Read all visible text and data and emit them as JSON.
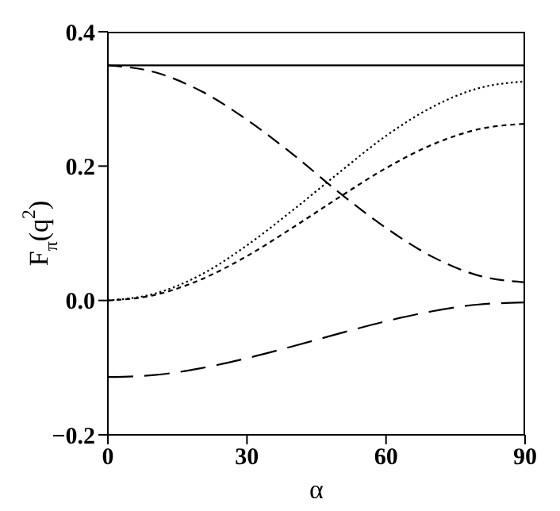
{
  "chart_data": {
    "type": "line",
    "xlabel": "α",
    "ylabel": "F$_{π}$(q$^{2}$)",
    "x": [
      0,
      10,
      20,
      30,
      40,
      50,
      60,
      70,
      80,
      90
    ],
    "series": [
      {
        "color": "#000000",
        "line_style": "solid",
        "values": [
          0.35,
          0.35,
          0.35,
          0.35,
          0.35,
          0.35,
          0.35,
          0.35,
          0.35,
          0.35
        ]
      },
      {
        "color": "#000000",
        "line_style": "dashed",
        "values": [
          0.35,
          0.34,
          0.312,
          0.269,
          0.217,
          0.16,
          0.108,
          0.065,
          0.037,
          0.027
        ]
      },
      {
        "color": "#000000",
        "line_style": "dotted",
        "values": [
          0,
          0.01,
          0.038,
          0.082,
          0.135,
          0.191,
          0.245,
          0.288,
          0.316,
          0.326
        ]
      },
      {
        "color": "#000000",
        "line_style": "dashed",
        "values": [
          0,
          0.008,
          0.031,
          0.066,
          0.109,
          0.154,
          0.197,
          0.232,
          0.255,
          0.263
        ]
      },
      {
        "color": "#000000",
        "line_style": "dashed",
        "values": [
          -0.114,
          -0.111,
          -0.101,
          -0.086,
          -0.068,
          -0.049,
          -0.031,
          -0.016,
          -0.006,
          -0.003
        ]
      }
    ],
    "xlim": [
      0,
      90
    ],
    "xticks": [
      0,
      30,
      60,
      90
    ],
    "ylim": [
      -0.2,
      0.4
    ],
    "yticks": [
      {
        "value": -0.2,
        "label": "−0.2"
      },
      {
        "value": 0,
        "label": "0.0"
      },
      0.2,
      0.4
    ],
    "grid": false,
    "legend": false,
    "marker": "none"
  }
}
